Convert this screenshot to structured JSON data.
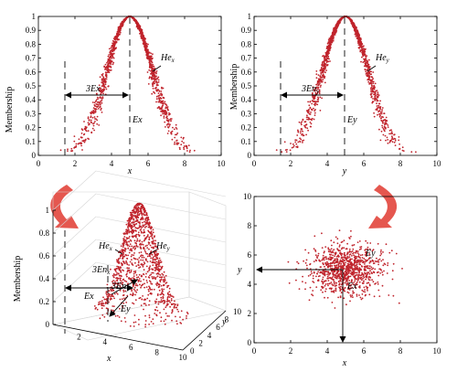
{
  "accent_color": "#c0242c",
  "curved_arrow_color": "#e2453c",
  "chart_data": [
    {
      "type": "scatter",
      "xlabel": "x",
      "ylabel": "Membership",
      "xlim": [
        0,
        10
      ],
      "ylim": [
        0,
        1
      ],
      "xticks": [
        "0",
        "2",
        "4",
        "6",
        "8",
        "10"
      ],
      "yticks": [
        "0",
        "0.1",
        "0.2",
        "0.3",
        "0.4",
        "0.5",
        "0.6",
        "0.7",
        "0.8",
        "0.9",
        "1"
      ],
      "expectation": 5,
      "entropy": 1.25,
      "hyper_entropy": 0.1,
      "points": 1500,
      "annotations": {
        "expectation": "Ex",
        "three_entropy": "3Ex",
        "hyper_entropy": "He",
        "hyper_entropy_sub": "x"
      }
    },
    {
      "type": "scatter",
      "xlabel": "y",
      "ylabel": "Membership",
      "xlim": [
        0,
        10
      ],
      "ylim": [
        0,
        1
      ],
      "xticks": [
        "0",
        "2",
        "4",
        "6",
        "8",
        "10"
      ],
      "yticks": [
        "0",
        "0.1",
        "0.2",
        "0.3",
        "0.4",
        "0.5",
        "0.6",
        "0.7",
        "0.8",
        "0.9",
        "1"
      ],
      "expectation": 5,
      "entropy": 1.25,
      "hyper_entropy": 0.1,
      "points": 1500,
      "annotations": {
        "expectation": "Ey",
        "three_entropy": "3En",
        "three_entropy_sub": "y",
        "hyper_entropy": "He",
        "hyper_entropy_sub": "y"
      }
    },
    {
      "type": "scatter",
      "xlabel": "x",
      "ylabel": "Membership",
      "zlabel": "y",
      "xlim": [
        0,
        10
      ],
      "ylim": [
        0,
        10
      ],
      "zlim": [
        0,
        1
      ],
      "xticks": [
        "2",
        "4",
        "6",
        "8",
        "10"
      ],
      "yticks": [
        "0",
        "2",
        "4",
        "6",
        "8",
        "10"
      ],
      "zticks": [
        "0",
        "0.2",
        "0.4",
        "0.6",
        "0.8",
        "1"
      ],
      "points": 1200,
      "annotations": {
        "hex": "He",
        "hex_sub": "x",
        "hey": "He",
        "hey_sub": "y",
        "three_enx": "3En",
        "three_enx_sub": "x",
        "three_eny": "3En",
        "three_eny_sub": "y",
        "ex": "Ex",
        "ey": "Ey"
      }
    },
    {
      "type": "scatter",
      "xlabel": "x",
      "ylabel": "y",
      "xlim": [
        0,
        10
      ],
      "ylim": [
        0,
        10
      ],
      "xticks": [
        "0",
        "2",
        "4",
        "6",
        "8",
        "10"
      ],
      "yticks": [
        "0",
        "2",
        "4",
        "6",
        "8",
        "10"
      ],
      "center": [
        5,
        5
      ],
      "points": 1000,
      "annotations": {
        "ex": "Ex",
        "ey": "Ey"
      }
    }
  ]
}
